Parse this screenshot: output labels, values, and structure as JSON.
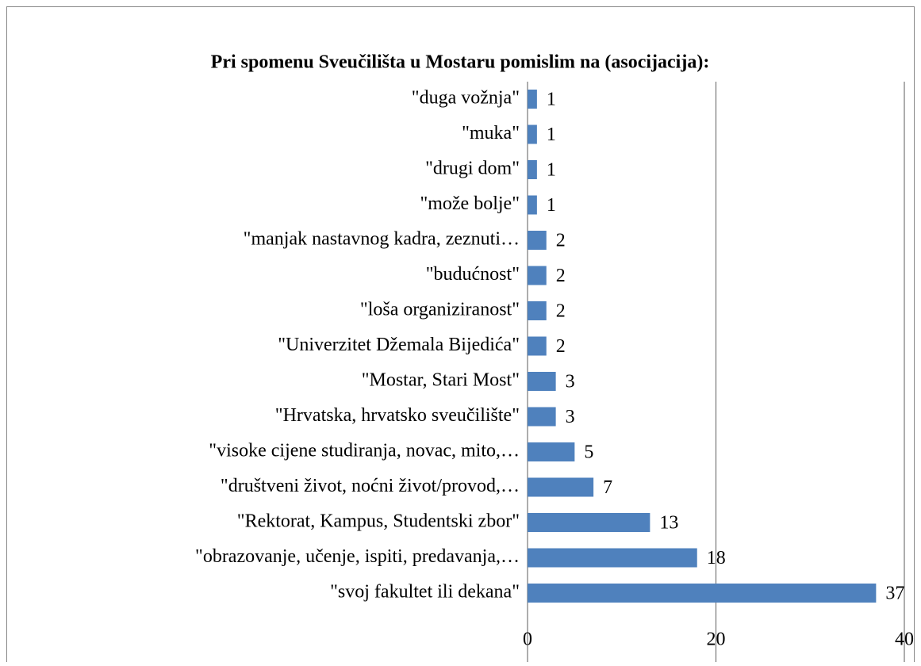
{
  "chart_data": {
    "type": "bar",
    "orientation": "horizontal",
    "title": "Pri spomenu Sveučilišta u Mostaru pomislim na (asocijacija):",
    "categories": [
      "\"duga vožnja\"",
      "\"muka\"",
      "\"drugi dom\"",
      "\"može bolje\"",
      "\"manjak nastavnog kadra, zeznuti…",
      "\"budućnost\"",
      "\"loša organiziranost\"",
      "\"Univerzitet Džemala Bijedića\"",
      "\"Mostar, Stari Most\"",
      "\"Hrvatska, hrvatsko sveučilište\"",
      "\"visoke cijene studiranja, novac, mito,…",
      "\"društveni život, noćni život/provod,…",
      "\"Rektorat, Kampus, Studentski zbor\"",
      "\"obrazovanje, učenje, ispiti, predavanja,…",
      "\"svoj fakultet ili dekana\""
    ],
    "values": [
      1,
      1,
      1,
      1,
      2,
      2,
      2,
      2,
      3,
      3,
      5,
      7,
      13,
      18,
      37
    ],
    "color": "#4f81bd",
    "xlim": [
      0,
      40
    ],
    "xticks": [
      0,
      20,
      40
    ],
    "grid": true
  }
}
